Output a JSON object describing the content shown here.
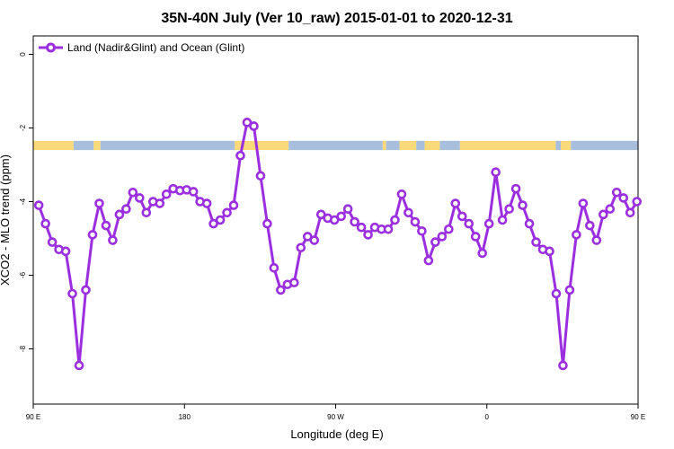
{
  "chart_data": {
    "type": "line",
    "title": "35N-40N July (Ver 10_raw)   2015-01-01 to 2020-12-31",
    "xlabel": "Longitude (deg E)",
    "ylabel": "XCO2 - MLO trend (ppm)",
    "xlim": [
      90,
      450
    ],
    "ylim": [
      -9.5,
      0.5
    ],
    "xticks": [
      {
        "value": 90,
        "label": "90 E"
      },
      {
        "value": 180,
        "label": "180"
      },
      {
        "value": 270,
        "label": "90 W"
      },
      {
        "value": 360,
        "label": "0"
      },
      {
        "value": 450,
        "label": "90 E"
      },
      {
        "value": 540,
        "label": "180"
      }
    ],
    "yticks": [
      {
        "value": 0,
        "label": "0"
      },
      {
        "value": -2,
        "label": "-2"
      },
      {
        "value": -4,
        "label": "-4"
      },
      {
        "value": -6,
        "label": "-6"
      },
      {
        "value": -8,
        "label": "-8"
      }
    ],
    "grid": false,
    "legend_position": "top-left",
    "series": [
      {
        "name": "Land (Nadir&Glint) and Ocean (Glint)",
        "color": "#9b2fe0",
        "points": [
          [
            93.3,
            -4.1
          ],
          [
            97.3,
            -4.6
          ],
          [
            101.3,
            -5.1
          ],
          [
            105.3,
            -5.3
          ],
          [
            109.3,
            -5.35
          ],
          [
            113.3,
            -6.5
          ],
          [
            117.3,
            -8.45
          ],
          [
            121.3,
            -6.4
          ],
          [
            125.3,
            -4.9
          ],
          [
            129.3,
            -4.05
          ],
          [
            133.3,
            -4.65
          ],
          [
            137.3,
            -5.05
          ],
          [
            141.3,
            -4.35
          ],
          [
            145.3,
            -4.2
          ],
          [
            149.3,
            -3.75
          ],
          [
            153.3,
            -3.9
          ],
          [
            157.3,
            -4.3
          ],
          [
            161.3,
            -4.0
          ],
          [
            165.3,
            -4.05
          ],
          [
            169.3,
            -3.8
          ],
          [
            173.3,
            -3.65
          ],
          [
            177.3,
            -3.7
          ],
          [
            181.3,
            -3.68
          ],
          [
            185.3,
            -3.73
          ],
          [
            189.3,
            -4.0
          ],
          [
            193.3,
            -4.05
          ],
          [
            197.3,
            -4.6
          ],
          [
            201.3,
            -4.5
          ],
          [
            205.3,
            -4.3
          ],
          [
            209.3,
            -4.1
          ],
          [
            213.3,
            -2.75
          ],
          [
            217.3,
            -1.85
          ],
          [
            221.3,
            -1.95
          ],
          [
            225.3,
            -3.3
          ],
          [
            229.3,
            -4.6
          ],
          [
            233.3,
            -5.8
          ],
          [
            237.3,
            -6.4
          ],
          [
            241.3,
            -6.25
          ],
          [
            245.3,
            -6.2
          ],
          [
            249.3,
            -5.25
          ],
          [
            253.3,
            -4.95
          ],
          [
            257.3,
            -5.05
          ],
          [
            261.3,
            -4.35
          ],
          [
            265.3,
            -4.45
          ],
          [
            269.3,
            -4.5
          ],
          [
            273.3,
            -4.4
          ],
          [
            277.3,
            -4.2
          ],
          [
            281.3,
            -4.55
          ],
          [
            285.3,
            -4.7
          ],
          [
            289.3,
            -4.9
          ],
          [
            293.3,
            -4.7
          ],
          [
            297.3,
            -4.75
          ],
          [
            301.3,
            -4.75
          ],
          [
            305.3,
            -4.5
          ],
          [
            309.3,
            -3.8
          ],
          [
            313.3,
            -4.3
          ],
          [
            317.3,
            -4.55
          ],
          [
            321.3,
            -4.8
          ],
          [
            325.3,
            -5.6
          ],
          [
            329.3,
            -5.1
          ],
          [
            333.3,
            -4.95
          ],
          [
            337.3,
            -4.75
          ],
          [
            341.3,
            -4.05
          ],
          [
            345.3,
            -4.4
          ],
          [
            349.3,
            -4.6
          ],
          [
            353.3,
            -4.95
          ],
          [
            357.3,
            -5.4
          ],
          [
            361.3,
            -4.6
          ],
          [
            365.3,
            -3.2
          ],
          [
            369.3,
            -4.5
          ],
          [
            373.3,
            -4.2
          ],
          [
            377.3,
            -3.65
          ],
          [
            381.3,
            -4.1
          ],
          [
            385.3,
            -4.6
          ],
          [
            389.3,
            -5.1
          ],
          [
            393.3,
            -5.3
          ],
          [
            397.3,
            -5.35
          ],
          [
            401.3,
            -6.5
          ],
          [
            405.3,
            -8.45
          ],
          [
            409.3,
            -6.4
          ],
          [
            413.3,
            -4.9
          ],
          [
            417.3,
            -4.05
          ],
          [
            421.3,
            -4.65
          ],
          [
            425.3,
            -5.05
          ],
          [
            429.3,
            -4.35
          ],
          [
            433.3,
            -4.2
          ],
          [
            437.3,
            -3.75
          ],
          [
            441.3,
            -3.9
          ],
          [
            445.3,
            -4.3
          ],
          [
            449.3,
            -4.0
          ]
        ]
      }
    ],
    "surface_strip": {
      "y_range": [
        -2.6,
        -2.35
      ],
      "land_color": "#fed97a",
      "ocean_color": "#a7bfdc",
      "segments": [
        {
          "type": "land",
          "from": 90,
          "to": 114
        },
        {
          "type": "ocean",
          "from": 114,
          "to": 126
        },
        {
          "type": "land",
          "from": 126,
          "to": 130
        },
        {
          "type": "ocean",
          "from": 130,
          "to": 210
        },
        {
          "type": "land",
          "from": 210,
          "to": 242
        },
        {
          "type": "ocean",
          "from": 242,
          "to": 298
        },
        {
          "type": "land",
          "from": 298,
          "to": 300
        },
        {
          "type": "ocean",
          "from": 300,
          "to": 308
        },
        {
          "type": "land",
          "from": 308,
          "to": 318
        },
        {
          "type": "ocean",
          "from": 318,
          "to": 323
        },
        {
          "type": "land",
          "from": 323,
          "to": 332
        },
        {
          "type": "ocean",
          "from": 332,
          "to": 344
        },
        {
          "type": "land",
          "from": 344,
          "to": 401
        },
        {
          "type": "ocean",
          "from": 401,
          "to": 404
        },
        {
          "type": "land",
          "from": 404,
          "to": 410
        },
        {
          "type": "ocean",
          "from": 410,
          "to": 450
        }
      ]
    }
  }
}
